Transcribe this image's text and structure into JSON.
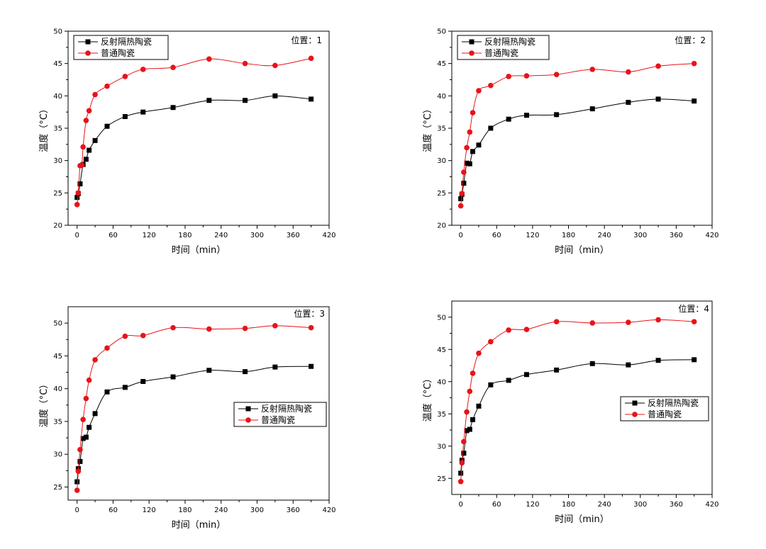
{
  "chart_data": [
    {
      "type": "line",
      "annotation": "位置：1",
      "xlabel": "时间（min）",
      "ylabel": "温度（°C）",
      "xlim": [
        -15,
        420
      ],
      "ylim": [
        20,
        50
      ],
      "xticks": [
        0,
        60,
        120,
        180,
        240,
        300,
        360,
        420
      ],
      "yticks": [
        20,
        25,
        30,
        35,
        40,
        45,
        50
      ],
      "legend_position": "top-left",
      "series": [
        {
          "name": "反射隔热陶瓷",
          "color": "#000000",
          "marker": "square",
          "x": [
            0,
            2,
            5,
            10,
            15,
            20,
            30,
            50,
            80,
            110,
            160,
            220,
            280,
            330,
            390
          ],
          "y": [
            24.3,
            24.9,
            26.4,
            29.4,
            30.2,
            31.6,
            33.1,
            35.3,
            36.8,
            37.5,
            38.2,
            39.3,
            39.3,
            40.0,
            39.5
          ]
        },
        {
          "name": "普通陶瓷",
          "color": "#e8131a",
          "marker": "circle",
          "x": [
            0,
            2,
            5,
            8,
            10,
            15,
            20,
            30,
            50,
            80,
            110,
            160,
            220,
            280,
            330,
            390
          ],
          "y": [
            23.2,
            25.0,
            29.2,
            29.3,
            32.1,
            36.2,
            37.7,
            40.2,
            41.5,
            43.0,
            44.1,
            44.4,
            45.7,
            45.0,
            44.7,
            45.8
          ]
        }
      ]
    },
    {
      "type": "line",
      "annotation": "位置：2",
      "xlabel": "时间（min）",
      "ylabel": "温度（°C）",
      "xlim": [
        -15,
        420
      ],
      "ylim": [
        20,
        50
      ],
      "xticks": [
        0,
        60,
        120,
        180,
        240,
        300,
        360,
        420
      ],
      "yticks": [
        20,
        25,
        30,
        35,
        40,
        45,
        50
      ],
      "legend_position": "top-left",
      "series": [
        {
          "name": "反射隔热陶瓷",
          "color": "#000000",
          "marker": "square",
          "x": [
            0,
            2,
            5,
            10,
            15,
            20,
            30,
            50,
            80,
            110,
            160,
            220,
            280,
            330,
            390
          ],
          "y": [
            24.1,
            24.8,
            26.5,
            29.6,
            29.5,
            31.4,
            32.4,
            35.0,
            36.4,
            37.0,
            37.1,
            38.0,
            39.0,
            39.5,
            39.2
          ]
        },
        {
          "name": "普通陶瓷",
          "color": "#e8131a",
          "marker": "circle",
          "x": [
            0,
            2,
            5,
            10,
            15,
            20,
            30,
            50,
            80,
            110,
            160,
            220,
            280,
            330,
            390
          ],
          "y": [
            23.0,
            24.9,
            28.2,
            32.0,
            34.4,
            37.4,
            40.8,
            41.6,
            43.0,
            43.1,
            43.3,
            44.1,
            43.7,
            44.6,
            45.0
          ]
        }
      ]
    },
    {
      "type": "line",
      "annotation": "位置：3",
      "xlabel": "时间（min）",
      "ylabel": "温度（°C）",
      "xlim": [
        -15,
        420
      ],
      "ylim": [
        23,
        52.5
      ],
      "xticks": [
        0,
        60,
        120,
        180,
        240,
        300,
        360,
        420
      ],
      "yticks": [
        25,
        30,
        35,
        40,
        45,
        50
      ],
      "legend_position": "center-right",
      "series": [
        {
          "name": "反射隔热陶瓷",
          "color": "#000000",
          "marker": "square",
          "x": [
            0,
            2,
            5,
            10,
            15,
            20,
            30,
            50,
            80,
            110,
            160,
            220,
            280,
            330,
            390
          ],
          "y": [
            25.8,
            27.8,
            28.9,
            32.4,
            32.6,
            34.1,
            36.2,
            39.5,
            40.2,
            41.1,
            41.8,
            42.8,
            42.6,
            43.3,
            43.4
          ]
        },
        {
          "name": "普通陶瓷",
          "color": "#e8131a",
          "marker": "circle",
          "x": [
            0,
            2,
            5,
            10,
            15,
            20,
            30,
            50,
            80,
            110,
            160,
            220,
            280,
            330,
            390
          ],
          "y": [
            24.5,
            27.4,
            30.7,
            35.3,
            38.5,
            41.3,
            44.4,
            46.2,
            48.0,
            48.1,
            49.3,
            49.1,
            49.2,
            49.6,
            49.3
          ]
        }
      ]
    },
    {
      "type": "line",
      "annotation": "位置：4",
      "xlabel": "时间（min）",
      "ylabel": "温度（°C）",
      "xlim": [
        -15,
        420
      ],
      "ylim": [
        22.5,
        52.5
      ],
      "xticks": [
        0,
        60,
        120,
        180,
        240,
        300,
        360,
        420
      ],
      "yticks": [
        25,
        30,
        35,
        40,
        45,
        50
      ],
      "legend_position": "center-right",
      "series": [
        {
          "name": "反射隔热陶瓷",
          "color": "#000000",
          "marker": "square",
          "x": [
            0,
            2,
            5,
            10,
            15,
            20,
            30,
            50,
            80,
            110,
            160,
            220,
            280,
            330,
            390
          ],
          "y": [
            25.8,
            27.8,
            28.9,
            32.4,
            32.6,
            34.1,
            36.2,
            39.5,
            40.2,
            41.1,
            41.8,
            42.8,
            42.6,
            43.3,
            43.4
          ]
        },
        {
          "name": "普通陶瓷",
          "color": "#e8131a",
          "marker": "circle",
          "x": [
            0,
            2,
            5,
            10,
            15,
            20,
            30,
            50,
            80,
            110,
            160,
            220,
            280,
            330,
            390
          ],
          "y": [
            24.5,
            27.4,
            30.7,
            35.3,
            38.5,
            41.3,
            44.4,
            46.2,
            48.0,
            48.1,
            49.3,
            49.1,
            49.2,
            49.6,
            49.3
          ]
        }
      ]
    }
  ]
}
